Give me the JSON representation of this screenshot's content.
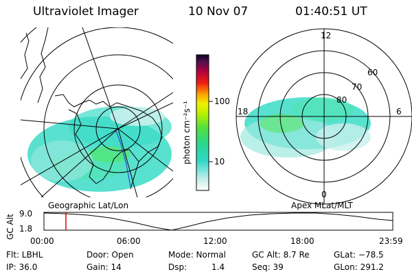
{
  "header": {
    "instrument": "Ultraviolet Imager",
    "date": "10 Nov 07",
    "time": "01:40:51 UT"
  },
  "panels": {
    "left_label": "Geographic Lat/Lon",
    "right_label": "Apex MLat/MLT",
    "mlt_labels": [
      "12",
      "18",
      "6",
      "0"
    ],
    "mlat_labels": [
      "60",
      "70",
      "80"
    ]
  },
  "colorbar": {
    "unit_label": "photon cm⁻²s⁻¹",
    "tick_labels": [
      "100",
      "10"
    ]
  },
  "timeline": {
    "ylabel": "GC Alt",
    "y_ticks": [
      "9.0",
      "1.8"
    ],
    "x_ticks": [
      "00:00",
      "06:00",
      "12:00",
      "18:00",
      "23:59"
    ],
    "cursor_time": "01:40:51"
  },
  "info": {
    "flt": "Flt: LBHL",
    "door": "Door: Open",
    "mode": "Mode: Normal",
    "gc_alt": "GC Alt: 8.7 Re",
    "glat": "GLat: −78.5",
    "ip": "IP: 36.0",
    "gain": "Gain: 14",
    "dsp_label": "Dsp:",
    "dsp_value": "1.4",
    "seq": "Seq: 39",
    "glon": "GLon: 291.2"
  },
  "colors": {
    "aurora_dominant": "#3cdcc8",
    "aurora_bright": "#50e650",
    "timeline_cursor": "#dd0000"
  }
}
